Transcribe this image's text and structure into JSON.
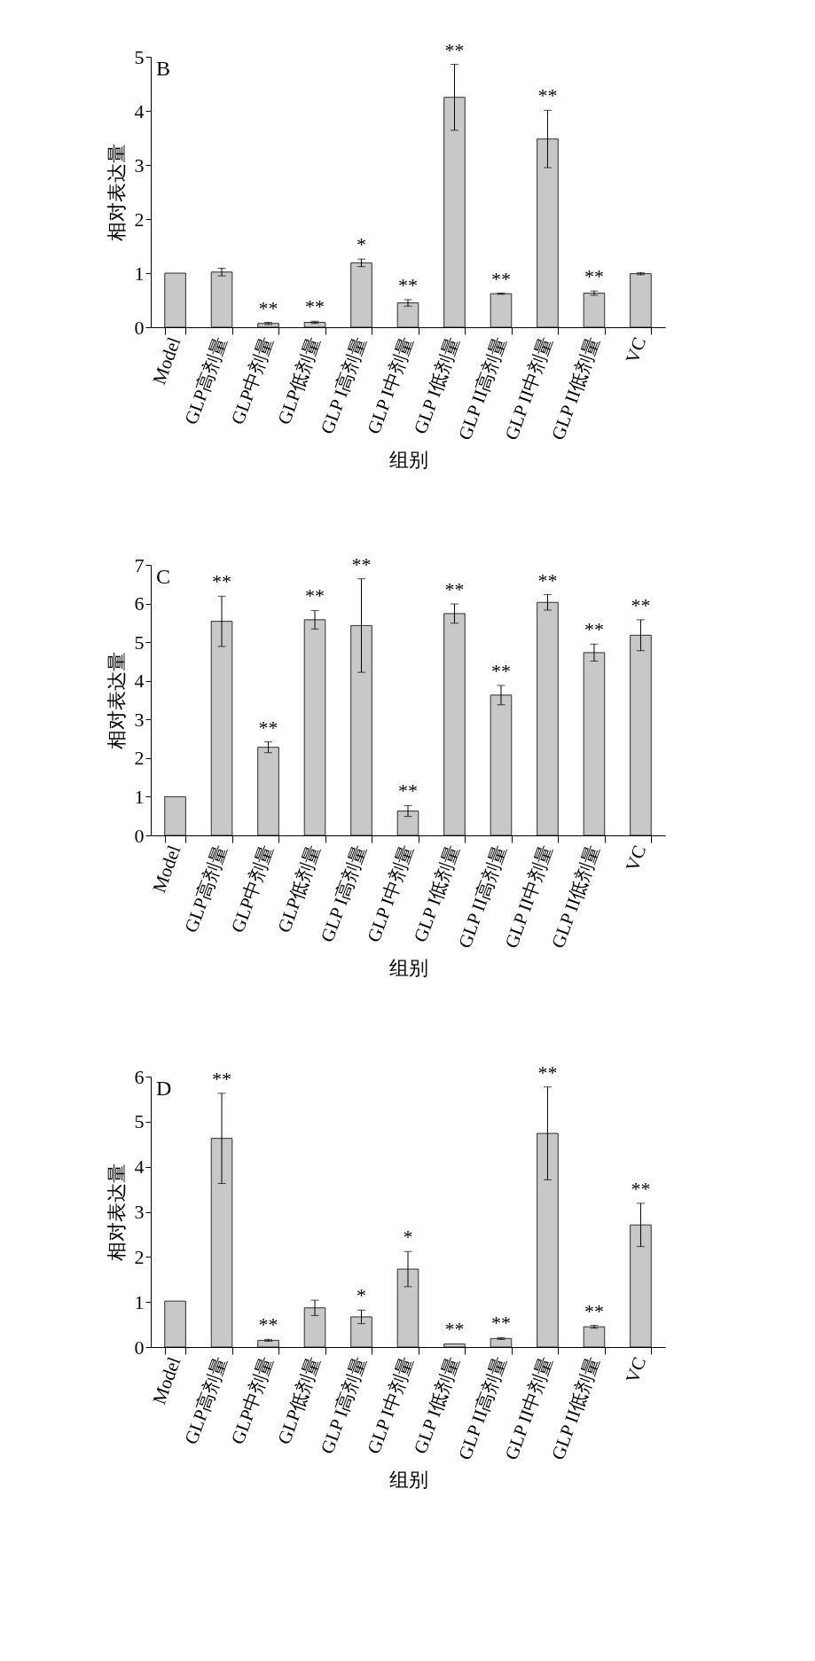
{
  "chart_data": [
    {
      "type": "bar",
      "title": "B",
      "xlabel": "组别",
      "ylabel": "相对表达量",
      "categories": [
        "Model",
        "GLP高剂量",
        "GLP中剂量",
        "GLP低剂量",
        "GLP I高剂量",
        "GLP I中剂量",
        "GLP I低剂量",
        "GLP II高剂量",
        "GLP II中剂量",
        "GLP II低剂量",
        "VC"
      ],
      "values": [
        1.0,
        1.02,
        0.07,
        0.09,
        1.19,
        0.45,
        4.25,
        0.62,
        3.48,
        0.63,
        0.99
      ],
      "errors": [
        null,
        0.07,
        0.02,
        0.02,
        0.07,
        0.06,
        0.61,
        0.01,
        0.53,
        0.04,
        0.02
      ],
      "color": "#c8c8c8",
      "ylim": [
        0,
        5
      ],
      "yticks": [
        0,
        1,
        2,
        3,
        4,
        5
      ],
      "grid": false,
      "annotations": [
        {
          "text": "**",
          "x": "GLP中剂量",
          "y": 0.07
        },
        {
          "text": "**",
          "x": "GLP低剂量",
          "y": 0.09
        },
        {
          "text": "*",
          "x": "GLP I高剂量",
          "y": 1.19
        },
        {
          "text": "**",
          "x": "GLP I中剂量",
          "y": 0.45
        },
        {
          "text": "**",
          "x": "GLP I低剂量",
          "y": 4.25
        },
        {
          "text": "**",
          "x": "GLP II高剂量",
          "y": 0.62
        },
        {
          "text": "**",
          "x": "GLP II中剂量",
          "y": 3.48
        },
        {
          "text": "**",
          "x": "GLP II低剂量",
          "y": 0.63
        }
      ]
    },
    {
      "type": "bar",
      "title": "C",
      "xlabel": "组别",
      "ylabel": "相对表达量",
      "categories": [
        "Model",
        "GLP高剂量",
        "GLP中剂量",
        "GLP低剂量",
        "GLP I高剂量",
        "GLP I中剂量",
        "GLP I低剂量",
        "GLP II高剂量",
        "GLP II中剂量",
        "GLP II低剂量",
        "VC"
      ],
      "values": [
        1.0,
        5.54,
        2.28,
        5.58,
        5.43,
        0.63,
        5.74,
        3.63,
        6.03,
        4.73,
        5.18
      ],
      "errors": [
        null,
        0.65,
        0.14,
        0.24,
        1.21,
        0.14,
        0.25,
        0.25,
        0.2,
        0.22,
        0.4
      ],
      "color": "#c8c8c8",
      "ylim": [
        0,
        7
      ],
      "yticks": [
        0,
        1,
        2,
        3,
        4,
        5,
        6,
        7
      ],
      "grid": false,
      "annotations": [
        {
          "text": "**",
          "x": "GLP高剂量",
          "y": 5.54
        },
        {
          "text": "**",
          "x": "GLP中剂量",
          "y": 2.28
        },
        {
          "text": "**",
          "x": "GLP低剂量",
          "y": 5.58
        },
        {
          "text": "**",
          "x": "GLP I高剂量",
          "y": 5.43
        },
        {
          "text": "**",
          "x": "GLP I中剂量",
          "y": 0.63
        },
        {
          "text": "**",
          "x": "GLP I低剂量",
          "y": 5.74
        },
        {
          "text": "**",
          "x": "GLP II高剂量",
          "y": 3.63
        },
        {
          "text": "**",
          "x": "GLP II中剂量",
          "y": 6.03
        },
        {
          "text": "**",
          "x": "GLP II低剂量",
          "y": 4.73
        },
        {
          "text": "**",
          "x": "VC",
          "y": 5.18
        }
      ]
    },
    {
      "type": "bar",
      "title": "D",
      "xlabel": "组别",
      "ylabel": "相对表达量",
      "categories": [
        "Model",
        "GLP高剂量",
        "GLP中剂量",
        "GLP低剂量",
        "GLP I高剂量",
        "GLP I中剂量",
        "GLP I低剂量",
        "GLP II高剂量",
        "GLP II中剂量",
        "GLP II低剂量",
        "VC"
      ],
      "values": [
        1.02,
        4.63,
        0.15,
        0.87,
        0.67,
        1.73,
        0.07,
        0.19,
        4.74,
        0.45,
        2.71
      ],
      "errors": [
        null,
        1.0,
        0.02,
        0.17,
        0.15,
        0.39,
        null,
        0.02,
        1.03,
        0.03,
        0.48
      ],
      "color": "#c8c8c8",
      "ylim": [
        0,
        6
      ],
      "yticks": [
        0,
        1,
        2,
        3,
        4,
        5,
        6
      ],
      "grid": false,
      "annotations": [
        {
          "text": "**",
          "x": "GLP高剂量",
          "y": 4.63
        },
        {
          "text": "**",
          "x": "GLP中剂量",
          "y": 0.15
        },
        {
          "text": "*",
          "x": "GLP I高剂量",
          "y": 0.67
        },
        {
          "text": "*",
          "x": "GLP I中剂量",
          "y": 1.73
        },
        {
          "text": "**",
          "x": "GLP I低剂量",
          "y": 0.07
        },
        {
          "text": "**",
          "x": "GLP II高剂量",
          "y": 0.19
        },
        {
          "text": "**",
          "x": "GLP II中剂量",
          "y": 4.74
        },
        {
          "text": "**",
          "x": "GLP II低剂量",
          "y": 0.45
        },
        {
          "text": "**",
          "x": "VC",
          "y": 2.71
        }
      ]
    }
  ]
}
